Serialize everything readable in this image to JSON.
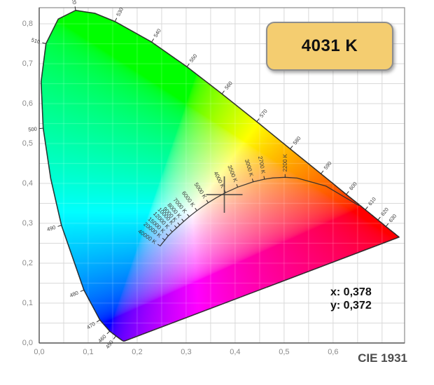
{
  "badge": {
    "label": "4031 K"
  },
  "readout": {
    "x_line": "x: 0,378",
    "y_line": "y: 0,372"
  },
  "footer": {
    "diagram_label": "CIE 1931"
  },
  "colors": {
    "badge_bg": "#f4cd70",
    "badge_border": "#8e8e8e",
    "grid": "#d9d9d9",
    "inner_grid": "rgba(255,255,255,0.22)",
    "plot_border": "#8c8c8c",
    "axis_line": "#5a5a5a",
    "axis_text": "#8a8a8a",
    "outline": "#1d1d1d",
    "locus_curve": "#2b2b2b",
    "tick_text": "#383838",
    "crosshair": "#3c3c3c"
  },
  "chart_data": {
    "type": "scatter",
    "subtype": "cie-1931-chromaticity-diagram",
    "title": "CIE 1931",
    "xlabel": "",
    "ylabel": "",
    "grid": true,
    "grid_step": 0.05,
    "xlim": [
      0,
      0.746
    ],
    "ylim": [
      0,
      0.8404
    ],
    "x_ticks": [
      {
        "v": 0.0,
        "label": "0,0"
      },
      {
        "v": 0.1,
        "label": "0,1"
      },
      {
        "v": 0.2,
        "label": "0,2"
      },
      {
        "v": 0.3,
        "label": "0,3"
      },
      {
        "v": 0.4,
        "label": "0,4"
      },
      {
        "v": 0.5,
        "label": "0,5"
      },
      {
        "v": 0.6,
        "label": "0,6"
      }
    ],
    "y_ticks": [
      {
        "v": 0.0,
        "label": "0,0"
      },
      {
        "v": 0.1,
        "label": "0,1"
      },
      {
        "v": 0.2,
        "label": "0,2"
      },
      {
        "v": 0.3,
        "label": "0,3"
      },
      {
        "v": 0.4,
        "label": "0,4"
      },
      {
        "v": 0.5,
        "label": "0,5"
      },
      {
        "v": 0.6,
        "label": "0,6"
      },
      {
        "v": 0.7,
        "label": "0,7"
      },
      {
        "v": 0.8,
        "label": "0,8"
      }
    ],
    "spectral_locus": [
      [
        380,
        0.1741,
        0.005
      ],
      [
        390,
        0.1738,
        0.0049
      ],
      [
        400,
        0.1733,
        0.0048
      ],
      [
        410,
        0.1726,
        0.0048
      ],
      [
        420,
        0.1714,
        0.0051
      ],
      [
        430,
        0.1689,
        0.0069
      ],
      [
        440,
        0.1644,
        0.0109
      ],
      [
        450,
        0.1566,
        0.0177
      ],
      [
        460,
        0.144,
        0.0297
      ],
      [
        470,
        0.1241,
        0.0578
      ],
      [
        480,
        0.0913,
        0.1327
      ],
      [
        490,
        0.0454,
        0.295
      ],
      [
        495,
        0.0235,
        0.4127
      ],
      [
        500,
        0.0082,
        0.5384
      ],
      [
        505,
        0.0039,
        0.6548
      ],
      [
        510,
        0.0139,
        0.7502
      ],
      [
        515,
        0.0389,
        0.812
      ],
      [
        520,
        0.0743,
        0.8338
      ],
      [
        525,
        0.1142,
        0.8262
      ],
      [
        530,
        0.1547,
        0.8059
      ],
      [
        540,
        0.2296,
        0.7543
      ],
      [
        550,
        0.3016,
        0.6923
      ],
      [
        560,
        0.3731,
        0.6245
      ],
      [
        570,
        0.4441,
        0.5547
      ],
      [
        580,
        0.5125,
        0.4866
      ],
      [
        590,
        0.5752,
        0.4242
      ],
      [
        600,
        0.627,
        0.3725
      ],
      [
        610,
        0.6658,
        0.334
      ],
      [
        620,
        0.6915,
        0.3083
      ],
      [
        630,
        0.7079,
        0.292
      ],
      [
        640,
        0.719,
        0.2809
      ],
      [
        650,
        0.726,
        0.274
      ],
      [
        660,
        0.73,
        0.27
      ],
      [
        680,
        0.7334,
        0.2666
      ],
      [
        700,
        0.7347,
        0.2653
      ]
    ],
    "wavelength_labels": [
      {
        "wl": 450,
        "label": "450"
      },
      {
        "wl": 460,
        "label": "460"
      },
      {
        "wl": 470,
        "label": "470"
      },
      {
        "wl": 480,
        "label": "480"
      },
      {
        "wl": 490,
        "label": "490"
      },
      {
        "wl": 500,
        "label": "500"
      },
      {
        "wl": 510,
        "label": "510"
      },
      {
        "wl": 520,
        "label": "520"
      },
      {
        "wl": 530,
        "label": "530"
      },
      {
        "wl": 540,
        "label": "540"
      },
      {
        "wl": 550,
        "label": "550"
      },
      {
        "wl": 560,
        "label": "560"
      },
      {
        "wl": 570,
        "label": "570"
      },
      {
        "wl": 580,
        "label": "580"
      },
      {
        "wl": 590,
        "label": "590"
      },
      {
        "wl": 600,
        "label": "600"
      },
      {
        "wl": 610,
        "label": "610"
      },
      {
        "wl": 620,
        "label": "620"
      },
      {
        "wl": 630,
        "label": "630"
      }
    ],
    "planckian_locus": [
      [
        1000,
        0.6528,
        0.3444
      ],
      [
        1500,
        0.5857,
        0.3931
      ],
      [
        2000,
        0.5267,
        0.4133
      ],
      [
        2200,
        0.502,
        0.4152
      ],
      [
        2500,
        0.477,
        0.4137
      ],
      [
        2700,
        0.4599,
        0.4106
      ],
      [
        3000,
        0.4369,
        0.4041
      ],
      [
        3500,
        0.4053,
        0.3907
      ],
      [
        4000,
        0.3805,
        0.3768
      ],
      [
        4500,
        0.3608,
        0.3636
      ],
      [
        5000,
        0.3451,
        0.3516
      ],
      [
        5500,
        0.3325,
        0.3411
      ],
      [
        6000,
        0.3221,
        0.3318
      ],
      [
        6500,
        0.3135,
        0.3237
      ],
      [
        7000,
        0.3064,
        0.3166
      ],
      [
        8000,
        0.2952,
        0.3048
      ],
      [
        9000,
        0.2869,
        0.2956
      ],
      [
        10000,
        0.2807,
        0.2884
      ],
      [
        12000,
        0.2717,
        0.2784
      ],
      [
        15000,
        0.2636,
        0.2686
      ],
      [
        20000,
        0.2565,
        0.2577
      ],
      [
        30000,
        0.2505,
        0.249
      ],
      [
        40000,
        0.247,
        0.243
      ]
    ],
    "cct_labels": [
      {
        "cct": 2200,
        "label": "2200 K"
      },
      {
        "cct": 2700,
        "label": "2700 K"
      },
      {
        "cct": 3000,
        "label": "3000 K"
      },
      {
        "cct": 3500,
        "label": "3500 K"
      },
      {
        "cct": 4000,
        "label": "4000 K"
      },
      {
        "cct": 5000,
        "label": "5000 K"
      },
      {
        "cct": 6000,
        "label": "6000 K"
      },
      {
        "cct": 7000,
        "label": "7000 K"
      },
      {
        "cct": 8000,
        "label": "8000 K"
      },
      {
        "cct": 9000,
        "label": "9000 K"
      },
      {
        "cct": 10000,
        "label": "10000 K"
      },
      {
        "cct": 12000,
        "label": "12000 K"
      },
      {
        "cct": 15000,
        "label": "15000 K"
      },
      {
        "cct": 20000,
        "label": "20000 K"
      },
      {
        "cct": 40000,
        "label": "40000 K"
      }
    ],
    "marker": {
      "x": 0.378,
      "y": 0.372,
      "cct": "4031 K"
    }
  }
}
